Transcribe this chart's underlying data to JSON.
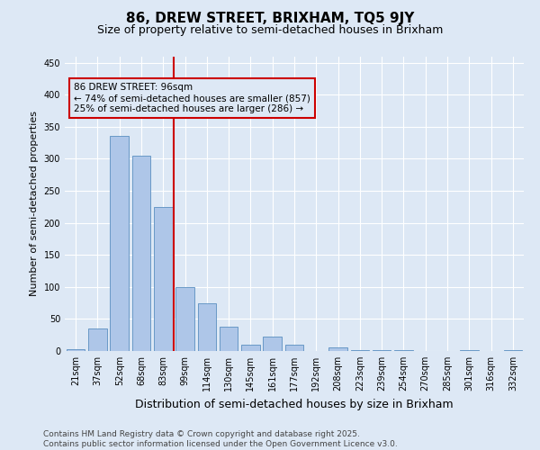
{
  "title": "86, DREW STREET, BRIXHAM, TQ5 9JY",
  "subtitle": "Size of property relative to semi-detached houses in Brixham",
  "xlabel": "Distribution of semi-detached houses by size in Brixham",
  "ylabel": "Number of semi-detached properties",
  "categories": [
    "21sqm",
    "37sqm",
    "52sqm",
    "68sqm",
    "83sqm",
    "99sqm",
    "114sqm",
    "130sqm",
    "145sqm",
    "161sqm",
    "177sqm",
    "192sqm",
    "208sqm",
    "223sqm",
    "239sqm",
    "254sqm",
    "270sqm",
    "285sqm",
    "301sqm",
    "316sqm",
    "332sqm"
  ],
  "values": [
    3,
    35,
    335,
    305,
    225,
    100,
    75,
    38,
    10,
    23,
    10,
    0,
    6,
    2,
    1,
    1,
    0,
    0,
    1,
    0,
    1
  ],
  "bar_color": "#aec6e8",
  "bar_edgecolor": "#5a8fc0",
  "vline_index": 5,
  "vline_color": "#cc0000",
  "annotation_text_line1": "86 DREW STREET: 96sqm",
  "annotation_text_line2": "← 74% of semi-detached houses are smaller (857)",
  "annotation_text_line3": "25% of semi-detached houses are larger (286) →",
  "annotation_box_edgecolor": "#cc0000",
  "ylim": [
    0,
    460
  ],
  "yticks": [
    0,
    50,
    100,
    150,
    200,
    250,
    300,
    350,
    400,
    450
  ],
  "footnote_line1": "Contains HM Land Registry data © Crown copyright and database right 2025.",
  "footnote_line2": "Contains public sector information licensed under the Open Government Licence v3.0.",
  "background_color": "#dde8f5",
  "grid_color": "#ffffff",
  "title_fontsize": 11,
  "subtitle_fontsize": 9,
  "xlabel_fontsize": 9,
  "ylabel_fontsize": 8,
  "annotation_fontsize": 7.5,
  "tick_fontsize": 7,
  "footnote_fontsize": 6.5
}
